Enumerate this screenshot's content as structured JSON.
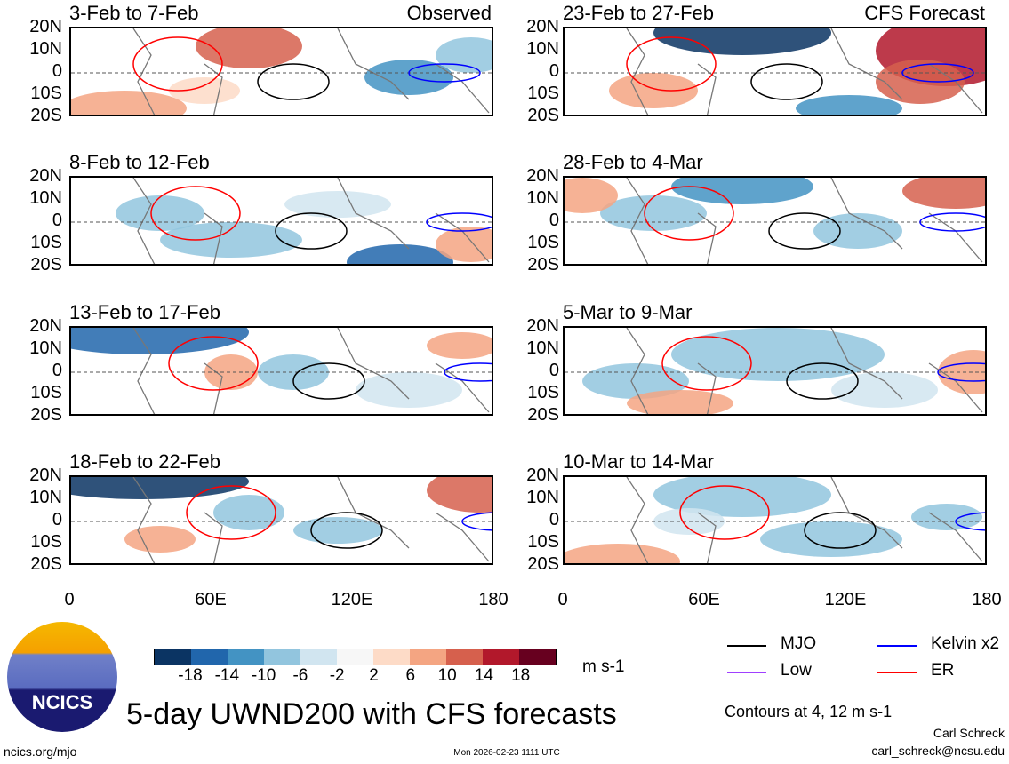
{
  "panels_left": [
    {
      "title": "3-Feb to 7-Feb",
      "tag": "Observed"
    },
    {
      "title": "8-Feb to 12-Feb",
      "tag": ""
    },
    {
      "title": "13-Feb to 17-Feb",
      "tag": ""
    },
    {
      "title": "18-Feb to 22-Feb",
      "tag": ""
    }
  ],
  "panels_right": [
    {
      "title": "23-Feb to 27-Feb",
      "tag": "CFS Forecast"
    },
    {
      "title": "28-Feb to 4-Mar",
      "tag": ""
    },
    {
      "title": "5-Mar to 9-Mar",
      "tag": ""
    },
    {
      "title": "10-Mar to 14-Mar",
      "tag": ""
    }
  ],
  "lat_labels": [
    "20N",
    "10N",
    "0",
    "10S",
    "20S"
  ],
  "lon_labels": [
    "0",
    "60E",
    "120E",
    "180"
  ],
  "colorbar": {
    "colors": [
      "#0b3463",
      "#2166ac",
      "#4393c3",
      "#92c5de",
      "#d1e5f0",
      "#f7f7f7",
      "#fddbc7",
      "#f4a582",
      "#d6604d",
      "#b2182b",
      "#67001f"
    ],
    "labels": [
      "-18",
      "-14",
      "-10",
      "-6",
      "-2",
      "2",
      "6",
      "10",
      "14",
      "18"
    ],
    "units": "m s-1"
  },
  "legend": [
    {
      "label": "MJO",
      "color": "#000000"
    },
    {
      "label": "Kelvin x2",
      "color": "#0000ff"
    },
    {
      "label": "Low",
      "color": "#a040ff"
    },
    {
      "label": "ER",
      "color": "#ff0000"
    }
  ],
  "contours_note": "Contours at 4, 12 m s-1",
  "title": "5-day UWND200 with CFS forecasts",
  "logo_text": "NCICS",
  "url": "ncics.org/mjo",
  "timestamp": "Mon 2026-02-23 1111 UTC",
  "author": "Carl Schreck",
  "email": "carl_schreck@ncsu.edu"
}
